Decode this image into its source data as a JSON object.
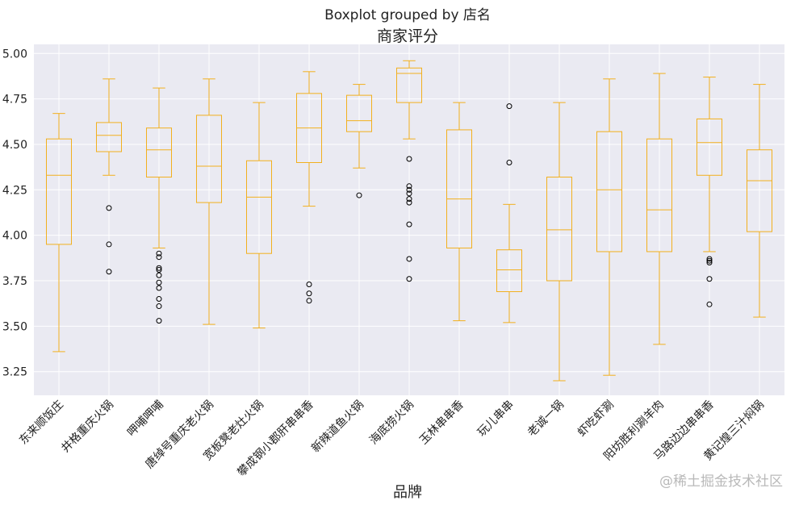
{
  "chart_data": {
    "type": "boxplot",
    "suptitle": "Boxplot grouped by 店名",
    "title": "商家评分",
    "xlabel": "品牌",
    "ylabel": "",
    "ylim": [
      3.12,
      5.05
    ],
    "yticks": [
      3.25,
      3.5,
      3.75,
      4.0,
      4.25,
      4.5,
      4.75,
      5.0
    ],
    "ytick_labels": [
      "3.25",
      "3.50",
      "3.75",
      "4.00",
      "4.25",
      "4.50",
      "4.75",
      "5.00"
    ],
    "grid": true,
    "box_color": "#f2b01e",
    "background": "#eaeaf2",
    "categories": [
      "东来顺饭庄",
      "井格重庆火锅",
      "呷哺呷哺",
      "唐绰号重庆老火锅",
      "宽板凳老灶火锅",
      "攀成钢小郡肝串串香",
      "新辣道鱼火锅",
      "海底捞火锅",
      "玉林串串香",
      "玩儿串串",
      "老诚一锅",
      "虾吃虾涮",
      "阳坊胜利涮羊肉",
      "马路边边串串香",
      "黄记煌三汁焖锅"
    ],
    "boxes": [
      {
        "min": 3.36,
        "q1": 3.95,
        "median": 4.33,
        "q3": 4.53,
        "max": 4.67,
        "outliers": []
      },
      {
        "min": 4.33,
        "q1": 4.46,
        "median": 4.55,
        "q3": 4.62,
        "max": 4.86,
        "outliers": [
          4.15,
          3.95,
          3.8
        ]
      },
      {
        "min": 3.93,
        "q1": 4.32,
        "median": 4.47,
        "q3": 4.59,
        "max": 4.81,
        "outliers": [
          3.9,
          3.88,
          3.82,
          3.81,
          3.78,
          3.74,
          3.71,
          3.65,
          3.61,
          3.53
        ]
      },
      {
        "min": 3.51,
        "q1": 4.18,
        "median": 4.38,
        "q3": 4.66,
        "max": 4.86,
        "outliers": []
      },
      {
        "min": 3.49,
        "q1": 3.9,
        "median": 4.21,
        "q3": 4.41,
        "max": 4.73,
        "outliers": []
      },
      {
        "min": 4.16,
        "q1": 4.4,
        "median": 4.59,
        "q3": 4.78,
        "max": 4.9,
        "outliers": [
          3.73,
          3.68,
          3.64
        ]
      },
      {
        "min": 4.37,
        "q1": 4.57,
        "median": 4.63,
        "q3": 4.77,
        "max": 4.83,
        "outliers": [
          4.22
        ]
      },
      {
        "min": 4.53,
        "q1": 4.73,
        "median": 4.89,
        "q3": 4.92,
        "max": 4.96,
        "outliers": [
          4.42,
          4.27,
          4.25,
          4.23,
          4.2,
          4.18,
          4.06,
          3.87,
          3.76
        ]
      },
      {
        "min": 3.53,
        "q1": 3.93,
        "median": 4.2,
        "q3": 4.58,
        "max": 4.73,
        "outliers": []
      },
      {
        "min": 3.52,
        "q1": 3.69,
        "median": 3.81,
        "q3": 3.92,
        "max": 4.17,
        "outliers": [
          4.71,
          4.4
        ]
      },
      {
        "min": 3.2,
        "q1": 3.75,
        "median": 4.03,
        "q3": 4.32,
        "max": 4.73,
        "outliers": []
      },
      {
        "min": 3.23,
        "q1": 3.91,
        "median": 4.25,
        "q3": 4.57,
        "max": 4.86,
        "outliers": []
      },
      {
        "min": 3.4,
        "q1": 3.91,
        "median": 4.14,
        "q3": 4.53,
        "max": 4.89,
        "outliers": []
      },
      {
        "min": 3.91,
        "q1": 4.33,
        "median": 4.51,
        "q3": 4.64,
        "max": 4.87,
        "outliers": [
          3.87,
          3.86,
          3.85,
          3.76,
          3.62
        ]
      },
      {
        "min": 3.55,
        "q1": 4.02,
        "median": 4.3,
        "q3": 4.47,
        "max": 4.83,
        "outliers": []
      }
    ]
  },
  "watermark": "@稀土掘金技术社区"
}
